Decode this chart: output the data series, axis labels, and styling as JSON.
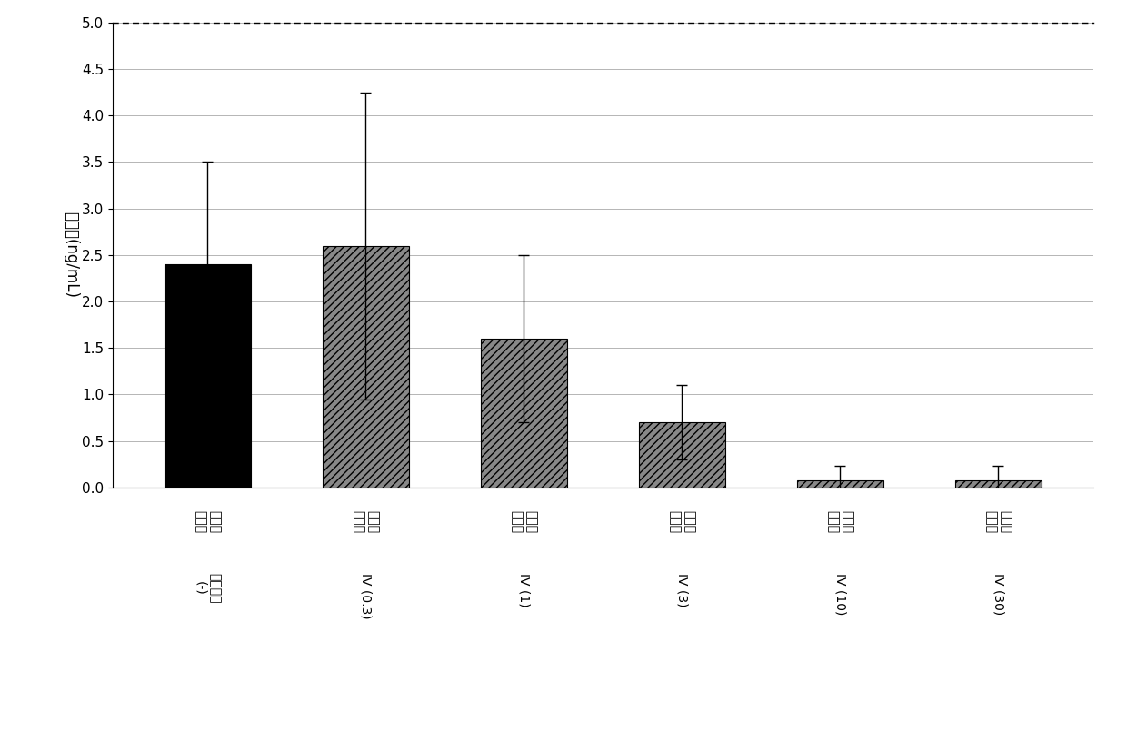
{
  "categories_line1": [
    "発情期\n黄体期",
    "発情期\n黄体期",
    "発情期\n黄体期",
    "発情期\n黄体期",
    "発情期\n黄体期",
    "発情期\n黄体期"
  ],
  "categories_line2": [
    "陰性対照\n(-)",
    "IV (0.3)",
    "IV (1)",
    "IV (3)",
    "IV (10)",
    "IV (30)"
  ],
  "values": [
    2.4,
    2.6,
    1.6,
    0.7,
    0.08,
    0.08
  ],
  "errors": [
    1.1,
    1.65,
    0.9,
    0.4,
    0.15,
    0.15
  ],
  "bar_colors": [
    "#000000",
    "#888888",
    "#888888",
    "#888888",
    "#888888",
    "#888888"
  ],
  "hatch_patterns": [
    "",
    "////",
    "////",
    "////",
    "////",
    "////"
  ],
  "ylabel_line1": "濃度　(ng/mL)",
  "ylim": [
    0,
    5
  ],
  "yticks": [
    0,
    0.5,
    1.0,
    1.5,
    2.0,
    2.5,
    3.0,
    3.5,
    4.0,
    4.5,
    5.0
  ],
  "background_color": "#ffffff",
  "grid_color": "#999999",
  "bar_width": 0.55,
  "ylabel_fontsize": 12,
  "tick_fontsize": 11,
  "xlabel_fontsize": 10,
  "figure_width": 12.4,
  "figure_height": 8.26,
  "dpi": 100
}
